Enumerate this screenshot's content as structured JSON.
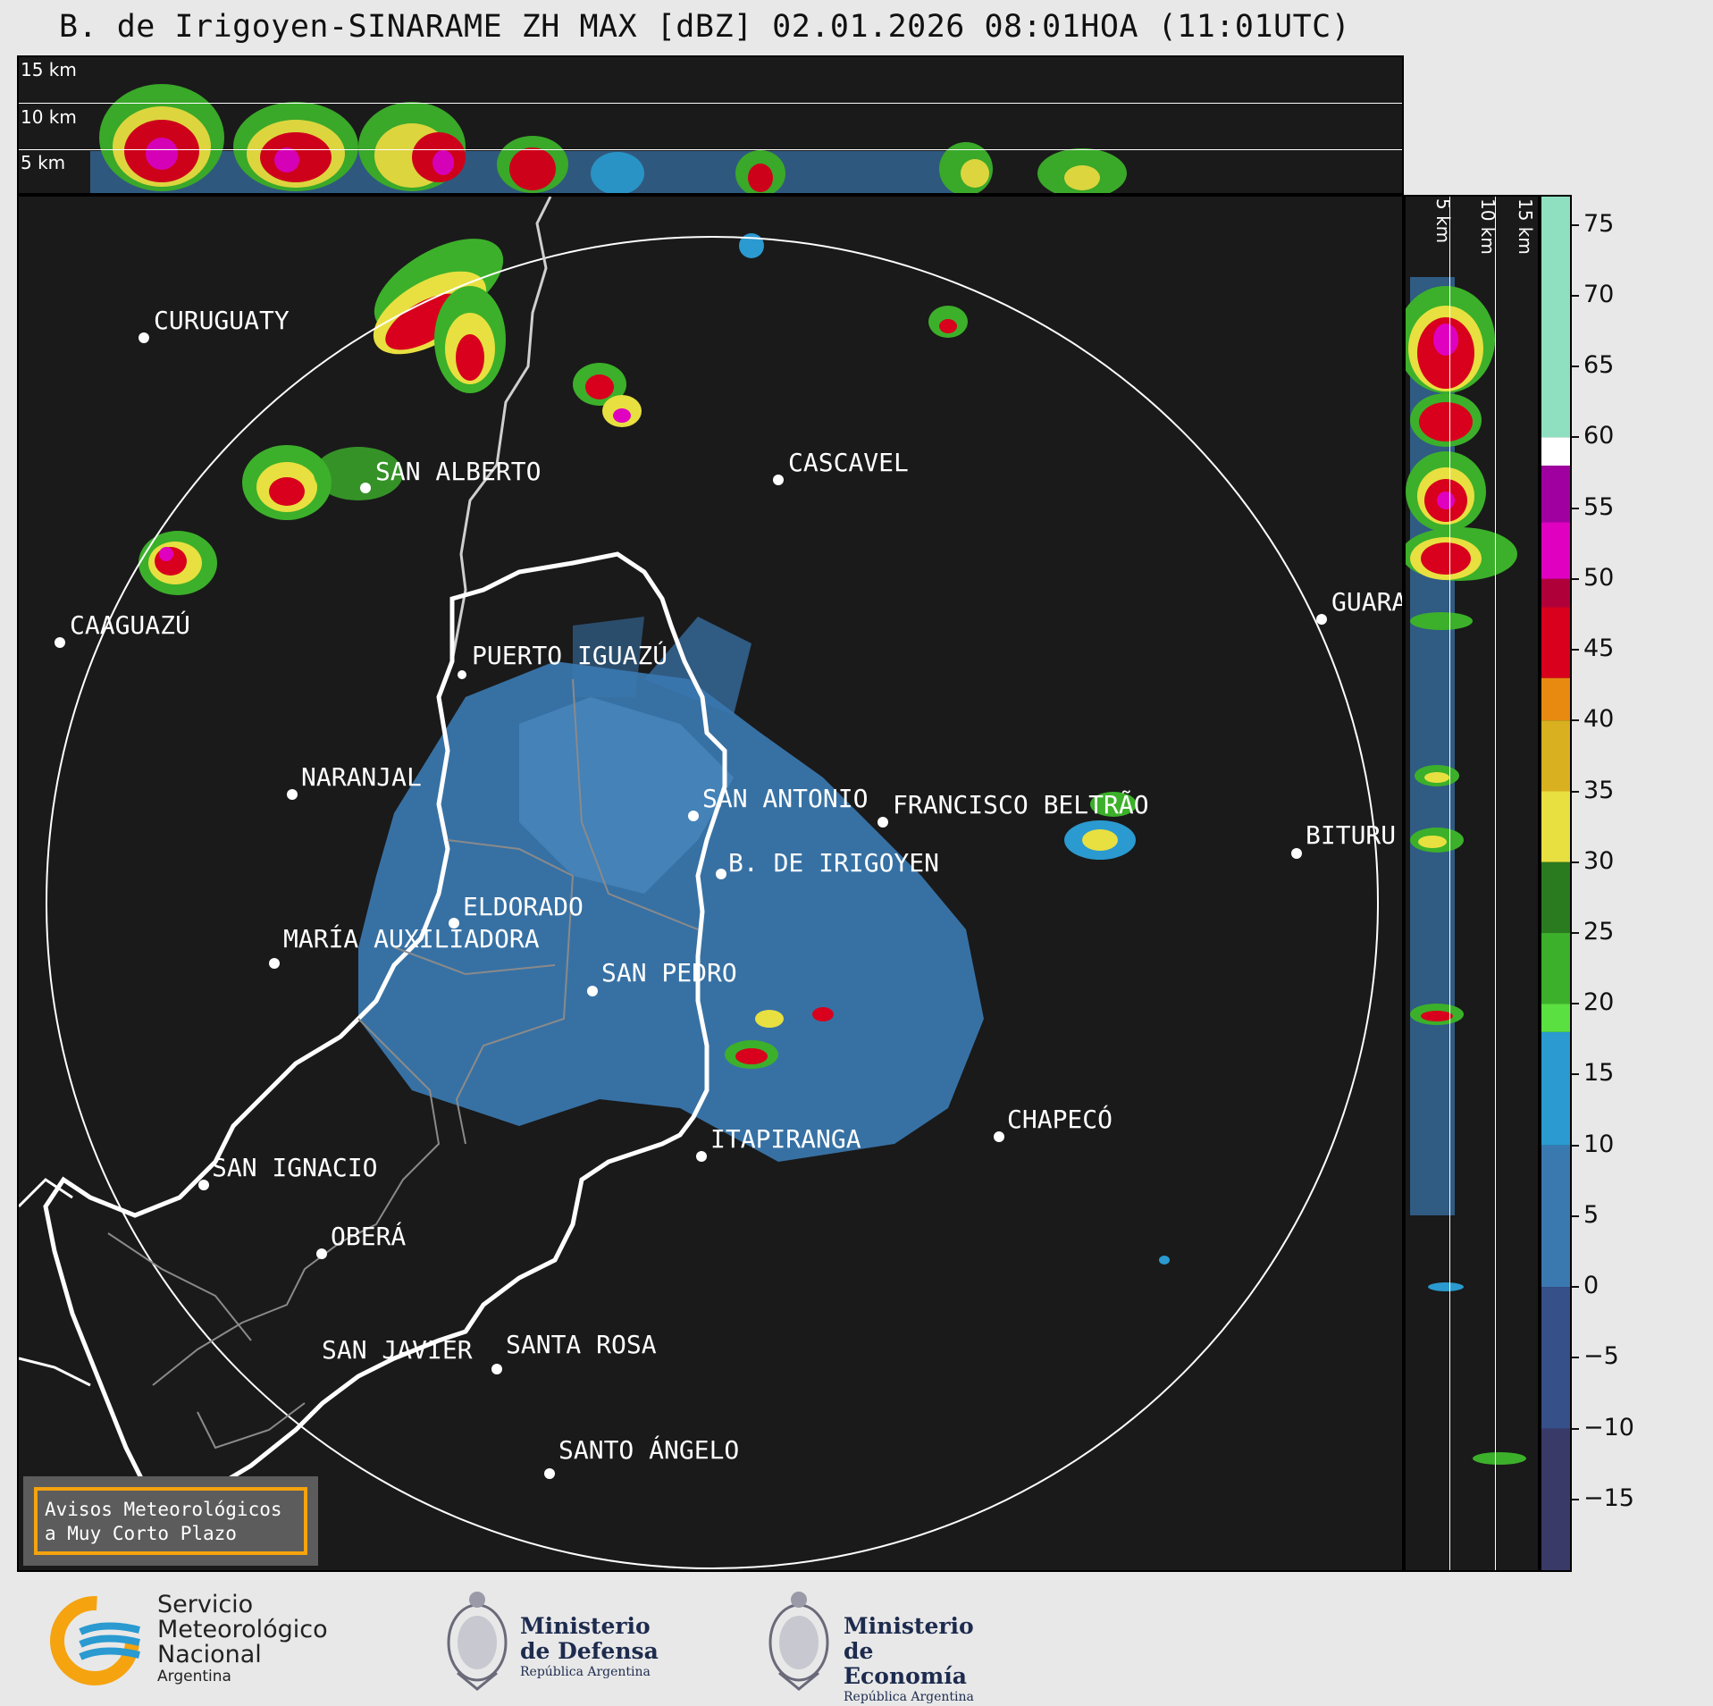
{
  "title": "B. de Irigoyen-SINARAME ZH MAX [dBZ] 02.01.2026 08:01HOA (11:01UTC)",
  "top_panel": {
    "height_labels": [
      "15 km",
      "10 km",
      "5 km"
    ]
  },
  "side_panel": {
    "height_labels": [
      "5 km",
      "10 km",
      "15 km"
    ]
  },
  "colorbar": {
    "ticks": [
      "75",
      "70",
      "65",
      "60",
      "55",
      "50",
      "45",
      "40",
      "35",
      "30",
      "25",
      "20",
      "15",
      "10",
      "5",
      "0",
      "−5",
      "−10",
      "−15"
    ],
    "range": [
      -20,
      77
    ],
    "stops": [
      {
        "from": 60,
        "to": 77,
        "color": "#8fe0c0"
      },
      {
        "from": 58,
        "to": 60,
        "color": "#ffffff"
      },
      {
        "from": 54,
        "to": 58,
        "color": "#a000a0"
      },
      {
        "from": 50,
        "to": 54,
        "color": "#e000c0"
      },
      {
        "from": 48,
        "to": 50,
        "color": "#b0003a"
      },
      {
        "from": 43,
        "to": 48,
        "color": "#d8001c"
      },
      {
        "from": 40,
        "to": 43,
        "color": "#e88a10"
      },
      {
        "from": 35,
        "to": 40,
        "color": "#d8b020"
      },
      {
        "from": 30,
        "to": 35,
        "color": "#e8e040"
      },
      {
        "from": 25,
        "to": 30,
        "color": "#2a7a20"
      },
      {
        "from": 20,
        "to": 25,
        "color": "#3cb02a"
      },
      {
        "from": 18,
        "to": 20,
        "color": "#5ae040"
      },
      {
        "from": 10,
        "to": 18,
        "color": "#2a9ad0"
      },
      {
        "from": 0,
        "to": 10,
        "color": "#3a78b0"
      },
      {
        "from": -10,
        "to": 0,
        "color": "#36508a"
      },
      {
        "from": -20,
        "to": -10,
        "color": "#3a3a68"
      }
    ]
  },
  "cities": [
    {
      "name": "CURUGUATY"
    },
    {
      "name": "SAN ALBERTO"
    },
    {
      "name": "CASCAVEL"
    },
    {
      "name": "CAAGUAZÚ"
    },
    {
      "name": "GUARA"
    },
    {
      "name": "PUERTO IGUAZÚ"
    },
    {
      "name": "NARANJAL"
    },
    {
      "name": "SAN ANTONIO"
    },
    {
      "name": "FRANCISCO BELTRÃO"
    },
    {
      "name": "BITURU"
    },
    {
      "name": "B. DE IRIGOYEN"
    },
    {
      "name": "ELDORADO"
    },
    {
      "name": "MARÍA AUXILIADORA"
    },
    {
      "name": "SAN PEDRO"
    },
    {
      "name": "CHAPECÓ"
    },
    {
      "name": "ITAPIRANGA"
    },
    {
      "name": "SAN IGNACIO"
    },
    {
      "name": "OBERÁ"
    },
    {
      "name": "SAN JAVIER"
    },
    {
      "name": "SANTA ROSA"
    },
    {
      "name": "SANTO ÁNGELO"
    }
  ],
  "warning_box": {
    "line1": "Avisos Meteorológicos",
    "line2": "a Muy Corto Plazo"
  },
  "footer": {
    "smn": {
      "line1": "Servicio",
      "line2": "Meteorológico",
      "line3": "Nacional",
      "line4": "Argentina"
    },
    "defensa": {
      "line1": "Ministerio",
      "line2": "de Defensa",
      "line3": "República Argentina"
    },
    "economia": {
      "line1": "Ministerio",
      "line2": "de Economía",
      "line3": "República Argentina"
    }
  }
}
